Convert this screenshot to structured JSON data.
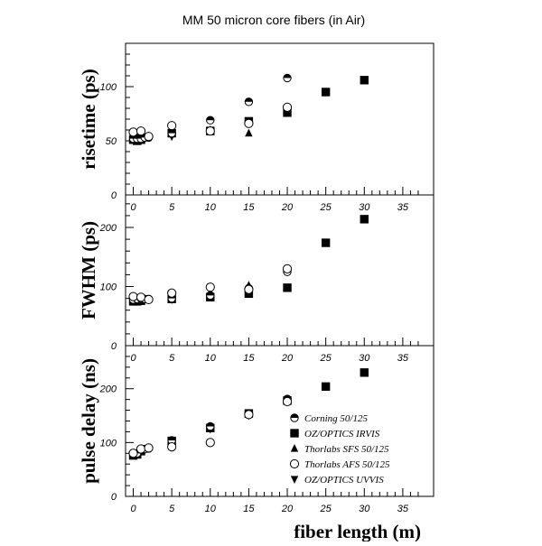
{
  "chart_data": {
    "type": "scatter",
    "title": "MM 50 micron core fibers (in Air)",
    "xlabel": "fiber length (m)",
    "xlim": [
      -1,
      39
    ],
    "xticks": [
      0,
      5,
      10,
      15,
      20,
      25,
      30,
      35
    ],
    "legend_position": "bottom-right",
    "series_styles": [
      {
        "name": "Corning 50/125",
        "marker": "half-filled-circle"
      },
      {
        "name": "OZ/OPTICS IRVIS",
        "marker": "filled-square"
      },
      {
        "name": "Thorlabs SFS 50/125",
        "marker": "triangle-up"
      },
      {
        "name": "Thorlabs AFS 50/125",
        "marker": "open-circle"
      },
      {
        "name": "OZ/OPTICS UVVIS",
        "marker": "triangle-down"
      }
    ],
    "panels": [
      {
        "ylabel": "risetime (ps)",
        "ylim": [
          0,
          140
        ],
        "yticks": [
          0,
          50,
          100
        ],
        "series": [
          {
            "name": "Corning 50/125",
            "points": [
              [
                0,
                52
              ],
              [
                0.5,
                52
              ],
              [
                1,
                52
              ],
              [
                1.5,
                53
              ],
              [
                2,
                53
              ],
              [
                5,
                57
              ],
              [
                10,
                69
              ],
              [
                15,
                86
              ],
              [
                20,
                108
              ]
            ]
          },
          {
            "name": "OZ/OPTICS IRVIS",
            "points": [
              [
                0,
                51
              ],
              [
                0.5,
                50
              ],
              [
                1,
                51
              ],
              [
                5,
                57
              ],
              [
                10,
                59
              ],
              [
                15,
                68
              ],
              [
                20,
                76
              ],
              [
                25,
                95
              ],
              [
                30,
                106
              ]
            ]
          },
          {
            "name": "Thorlabs SFS 50/125",
            "points": [
              [
                0,
                55
              ],
              [
                1,
                56
              ],
              [
                5,
                57
              ],
              [
                10,
                60
              ],
              [
                15,
                57
              ]
            ]
          },
          {
            "name": "Thorlabs AFS 50/125",
            "points": [
              [
                0,
                58
              ],
              [
                1,
                59
              ],
              [
                2,
                54
              ],
              [
                5,
                64
              ],
              [
                10,
                59
              ],
              [
                15,
                66
              ],
              [
                20,
                81
              ]
            ]
          },
          {
            "name": "OZ/OPTICS UVVIS",
            "points": [
              [
                0,
                53
              ],
              [
                1,
                53
              ],
              [
                5,
                54
              ],
              [
                10,
                60
              ],
              [
                15,
                68
              ]
            ]
          }
        ]
      },
      {
        "ylabel": "FWHM (ps)",
        "ylim": [
          0,
          255
        ],
        "yticks": [
          0,
          100,
          200
        ],
        "series": [
          {
            "name": "Corning 50/125",
            "points": [
              [
                0,
                78
              ],
              [
                0.5,
                79
              ],
              [
                1,
                80
              ],
              [
                1.5,
                79
              ],
              [
                2,
                79
              ],
              [
                5,
                80
              ],
              [
                10,
                85
              ],
              [
                15,
                97
              ],
              [
                20,
                125
              ]
            ]
          },
          {
            "name": "OZ/OPTICS IRVIS",
            "points": [
              [
                0,
                75
              ],
              [
                0.5,
                75
              ],
              [
                1,
                76
              ],
              [
                5,
                79
              ],
              [
                10,
                82
              ],
              [
                15,
                88
              ],
              [
                20,
                98
              ],
              [
                25,
                174
              ],
              [
                30,
                214
              ]
            ]
          },
          {
            "name": "Thorlabs SFS 50/125",
            "points": [
              [
                0,
                80
              ],
              [
                1,
                80
              ],
              [
                5,
                82
              ],
              [
                10,
                86
              ],
              [
                15,
                102
              ]
            ]
          },
          {
            "name": "Thorlabs AFS 50/125",
            "points": [
              [
                0,
                83
              ],
              [
                1,
                82
              ],
              [
                2,
                78
              ],
              [
                5,
                89
              ],
              [
                10,
                99
              ],
              [
                15,
                95
              ],
              [
                20,
                130
              ]
            ]
          },
          {
            "name": "OZ/OPTICS UVVIS",
            "points": [
              [
                0,
                76
              ],
              [
                1,
                77
              ],
              [
                5,
                78
              ],
              [
                10,
                84
              ],
              [
                15,
                92
              ]
            ]
          }
        ]
      },
      {
        "ylabel": "pulse delay (ns)",
        "ylim": [
          0,
          280
        ],
        "yticks": [
          0,
          100,
          200
        ],
        "series": [
          {
            "name": "Corning 50/125",
            "points": [
              [
                0,
                79
              ],
              [
                0.5,
                80
              ],
              [
                1,
                87
              ],
              [
                1.5,
                88
              ],
              [
                2,
                89
              ],
              [
                5,
                104
              ],
              [
                10,
                130
              ],
              [
                15,
                154
              ],
              [
                20,
                181
              ]
            ]
          },
          {
            "name": "OZ/OPTICS IRVIS",
            "points": [
              [
                0,
                76
              ],
              [
                0.5,
                78
              ],
              [
                1,
                84
              ],
              [
                5,
                103
              ],
              [
                10,
                127
              ],
              [
                15,
                154
              ],
              [
                20,
                178
              ],
              [
                25,
                204
              ],
              [
                30,
                230
              ]
            ]
          },
          {
            "name": "Thorlabs SFS 50/125",
            "points": [
              [
                0,
                78
              ],
              [
                1,
                84
              ],
              [
                5,
                101
              ],
              [
                10,
                126
              ],
              [
                15,
                152
              ]
            ]
          },
          {
            "name": "Thorlabs AFS 50/125",
            "points": [
              [
                0,
                80
              ],
              [
                1,
                88
              ],
              [
                2,
                90
              ],
              [
                5,
                92
              ],
              [
                10,
                100
              ],
              [
                15,
                152
              ],
              [
                20,
                176
              ]
            ]
          },
          {
            "name": "OZ/OPTICS UVVIS",
            "points": [
              [
                0,
                77
              ],
              [
                1,
                85
              ],
              [
                5,
                100
              ],
              [
                10,
                125
              ],
              [
                15,
                150
              ]
            ]
          }
        ]
      }
    ]
  }
}
